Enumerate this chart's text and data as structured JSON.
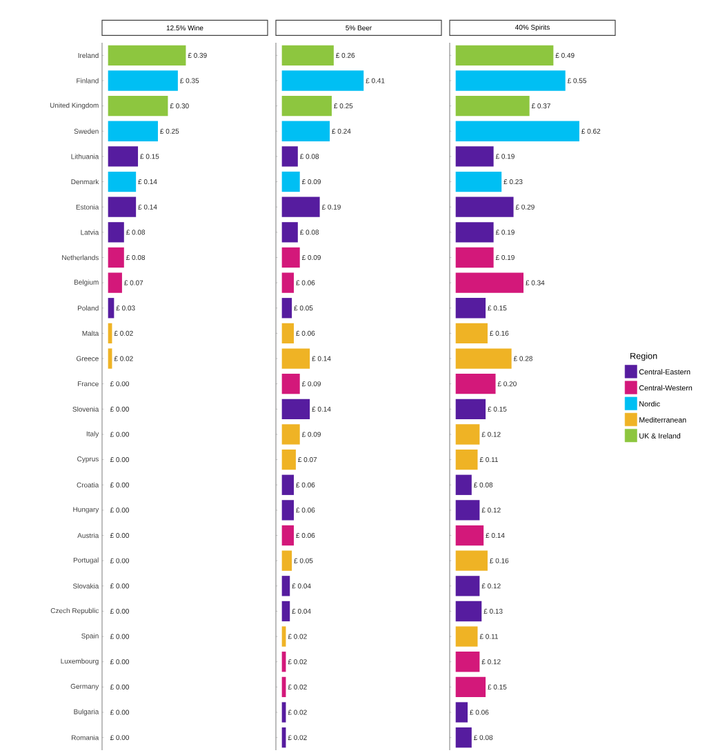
{
  "chart_data": [
    {
      "type": "bar",
      "orientation": "horizontal",
      "stacked": true,
      "title": "12.5% Wine",
      "tick_labels": "y",
      "categories": [
        "Ireland",
        "Finland",
        "United Kingdom",
        "Sweden",
        "Lithuania",
        "Denmark",
        "Estonia",
        "Latvia",
        "Netherlands",
        "Belgium",
        "Poland",
        "Malta",
        "Greece",
        "France",
        "Slovenia",
        "Italy",
        "Cyprus",
        "Croatia",
        "Hungary",
        "Austria",
        "Portugal",
        "Slovakia",
        "Czech Republic",
        "Spain",
        "Luxembourg",
        "Germany",
        "Bulgaria",
        "Romania"
      ],
      "series": [
        {
          "color": "#561c9f",
          "values": [
            null,
            null,
            null,
            null,
            0.15,
            null,
            0.14,
            0.08,
            null,
            null,
            0.03,
            null,
            null,
            null,
            0,
            null,
            null,
            0,
            0,
            null,
            null,
            0,
            0,
            null,
            null,
            null,
            0,
            0
          ],
          "value_labels": [
            null,
            null,
            null,
            null,
            "£ 0.15",
            null,
            "£ 0.14",
            "£ 0.08",
            null,
            null,
            "£ 0.03",
            null,
            null,
            null,
            "£ 0.00",
            null,
            null,
            "£ 0.00",
            "£ 0.00",
            null,
            null,
            "£ 0.00",
            "£ 0.00",
            null,
            null,
            null,
            "£ 0.00",
            "£ 0.00"
          ]
        },
        {
          "color": "#d3187a",
          "values": [
            null,
            null,
            null,
            null,
            null,
            null,
            null,
            null,
            0.08,
            0.07,
            null,
            null,
            null,
            0,
            null,
            null,
            null,
            null,
            null,
            0,
            null,
            null,
            null,
            null,
            0,
            0,
            null,
            null
          ],
          "value_labels": [
            null,
            null,
            null,
            null,
            null,
            null,
            null,
            null,
            "£ 0.08",
            "£ 0.07",
            null,
            null,
            null,
            "£ 0.00",
            null,
            null,
            null,
            null,
            null,
            "£ 0.00",
            null,
            null,
            null,
            null,
            "£ 0.00",
            "£ 0.00",
            null,
            null
          ]
        },
        {
          "color": "#00bff3",
          "values": [
            null,
            0.35,
            null,
            0.25,
            null,
            0.14,
            null,
            null,
            null,
            null,
            null,
            null,
            null,
            null,
            null,
            null,
            null,
            null,
            null,
            null,
            null,
            null,
            null,
            null,
            null,
            null,
            null,
            null
          ],
          "value_labels": [
            null,
            "£ 0.35",
            null,
            "£ 0.25",
            null,
            "£ 0.14",
            null,
            null,
            null,
            null,
            null,
            null,
            null,
            null,
            null,
            null,
            null,
            null,
            null,
            null,
            null,
            null,
            null,
            null,
            null,
            null,
            null,
            null
          ]
        },
        {
          "color": "#efb325",
          "values": [
            null,
            null,
            null,
            null,
            null,
            null,
            null,
            null,
            null,
            null,
            null,
            0.02,
            0.02,
            null,
            null,
            0,
            0,
            null,
            null,
            null,
            0,
            null,
            null,
            0,
            null,
            null,
            null,
            null
          ],
          "value_labels": [
            null,
            null,
            null,
            null,
            null,
            null,
            null,
            null,
            null,
            null,
            null,
            "£ 0.02",
            "£ 0.02",
            null,
            null,
            "£ 0.00",
            "£ 0.00",
            null,
            null,
            null,
            "£ 0.00",
            null,
            null,
            "£ 0.00",
            null,
            null,
            null,
            null
          ]
        },
        {
          "color": "#8dc63f",
          "values": [
            0.39,
            null,
            0.3,
            null,
            null,
            null,
            null,
            null,
            null,
            null,
            null,
            null,
            null,
            null,
            null,
            null,
            null,
            null,
            null,
            null,
            null,
            null,
            null,
            null,
            null,
            null,
            null,
            null
          ],
          "value_labels": [
            "£ 0.39",
            null,
            "£ 0.30",
            null,
            null,
            null,
            null,
            null,
            null,
            null,
            null,
            null,
            null,
            null,
            null,
            null,
            null,
            null,
            null,
            null,
            null,
            null,
            null,
            null,
            null,
            null,
            null,
            null
          ]
        }
      ]
    },
    {
      "type": "bar",
      "orientation": "horizontal",
      "stacked": true,
      "title": "5% Beer",
      "tick_labels": false,
      "categories": [
        null,
        null,
        null,
        null,
        null,
        null,
        null,
        null,
        null,
        null,
        null,
        null,
        null,
        null,
        null,
        null,
        null,
        null,
        null,
        null,
        null,
        null,
        null,
        null,
        null,
        null,
        null,
        null
      ],
      "series": [
        {
          "color": "#561c9f",
          "values": [
            null,
            null,
            null,
            null,
            0.08,
            null,
            0.19,
            0.08,
            null,
            null,
            0.05,
            null,
            null,
            null,
            0.14,
            null,
            null,
            0.06,
            0.06,
            null,
            null,
            0.04,
            0.04,
            null,
            null,
            null,
            0.02,
            0.02
          ],
          "value_labels": [
            null,
            null,
            null,
            null,
            "£ 0.08",
            null,
            "£ 0.19",
            "£ 0.08",
            null,
            null,
            "£ 0.05",
            null,
            null,
            null,
            "£ 0.14",
            null,
            null,
            "£ 0.06",
            "£ 0.06",
            null,
            null,
            "£ 0.04",
            "£ 0.04",
            null,
            null,
            null,
            "£ 0.02",
            "£ 0.02"
          ]
        },
        {
          "color": "#d3187a",
          "values": [
            null,
            null,
            null,
            null,
            null,
            null,
            null,
            null,
            0.09,
            0.06,
            null,
            null,
            null,
            0.09,
            null,
            null,
            null,
            null,
            null,
            0.06,
            null,
            null,
            null,
            null,
            0.02,
            0.02,
            null,
            null
          ],
          "value_labels": [
            null,
            null,
            null,
            null,
            null,
            null,
            null,
            null,
            "£ 0.09",
            "£ 0.06",
            null,
            null,
            null,
            "£ 0.09",
            null,
            null,
            null,
            null,
            null,
            "£ 0.06",
            null,
            null,
            null,
            null,
            "£ 0.02",
            "£ 0.02",
            null,
            null
          ]
        },
        {
          "color": "#00bff3",
          "values": [
            null,
            0.41,
            null,
            0.24,
            null,
            0.09,
            null,
            null,
            null,
            null,
            null,
            null,
            null,
            null,
            null,
            null,
            null,
            null,
            null,
            null,
            null,
            null,
            null,
            null,
            null,
            null,
            null,
            null
          ],
          "value_labels": [
            null,
            "£ 0.41",
            null,
            "£ 0.24",
            null,
            "£ 0.09",
            null,
            null,
            null,
            null,
            null,
            null,
            null,
            null,
            null,
            null,
            null,
            null,
            null,
            null,
            null,
            null,
            null,
            null,
            null,
            null,
            null,
            null
          ]
        },
        {
          "color": "#efb325",
          "values": [
            null,
            null,
            null,
            null,
            null,
            null,
            null,
            null,
            null,
            null,
            null,
            0.06,
            0.14,
            null,
            null,
            0.09,
            0.07,
            null,
            null,
            null,
            0.05,
            null,
            null,
            0.02,
            null,
            null,
            null,
            null
          ],
          "value_labels": [
            null,
            null,
            null,
            null,
            null,
            null,
            null,
            null,
            null,
            null,
            null,
            "£ 0.06",
            "£ 0.14",
            null,
            null,
            "£ 0.09",
            "£ 0.07",
            null,
            null,
            null,
            "£ 0.05",
            null,
            null,
            "£ 0.02",
            null,
            null,
            null,
            null
          ]
        },
        {
          "color": "#8dc63f",
          "values": [
            0.26,
            null,
            0.25,
            null,
            null,
            null,
            null,
            null,
            null,
            null,
            null,
            null,
            null,
            null,
            null,
            null,
            null,
            null,
            null,
            null,
            null,
            null,
            null,
            null,
            null,
            null,
            null,
            null
          ],
          "value_labels": [
            "£ 0.26",
            null,
            "£ 0.25",
            null,
            null,
            null,
            null,
            null,
            null,
            null,
            null,
            null,
            null,
            null,
            null,
            null,
            null,
            null,
            null,
            null,
            null,
            null,
            null,
            null,
            null,
            null,
            null,
            null
          ]
        }
      ]
    },
    {
      "type": "bar",
      "orientation": "horizontal",
      "stacked": true,
      "title": "40% Spirits",
      "tick_labels": false,
      "legend": "right",
      "legend_title": "Region",
      "categories": [
        null,
        null,
        null,
        null,
        null,
        null,
        null,
        null,
        null,
        null,
        null,
        null,
        null,
        null,
        null,
        null,
        null,
        null,
        null,
        null,
        null,
        null,
        null,
        null,
        null,
        null,
        null,
        null
      ],
      "series": [
        {
          "name": "Central-Eastern",
          "color": "#561c9f",
          "values": [
            null,
            null,
            null,
            null,
            0.19,
            null,
            0.29,
            0.19,
            null,
            null,
            0.15,
            null,
            null,
            null,
            0.15,
            null,
            null,
            0.08,
            0.12,
            null,
            null,
            0.12,
            0.13,
            null,
            null,
            null,
            0.06,
            0.08
          ],
          "value_labels": [
            null,
            null,
            null,
            null,
            "£ 0.19",
            null,
            "£ 0.29",
            "£ 0.19",
            null,
            null,
            "£ 0.15",
            null,
            null,
            null,
            "£ 0.15",
            null,
            null,
            "£ 0.08",
            "£ 0.12",
            null,
            null,
            "£ 0.12",
            "£ 0.13",
            null,
            null,
            null,
            "£ 0.06",
            "£ 0.08"
          ]
        },
        {
          "name": "Central-Western",
          "color": "#d3187a",
          "values": [
            null,
            null,
            null,
            null,
            null,
            null,
            null,
            null,
            0.19,
            0.34,
            null,
            null,
            null,
            0.2,
            null,
            null,
            null,
            null,
            null,
            0.14,
            null,
            null,
            null,
            null,
            0.12,
            0.15,
            null,
            null
          ],
          "value_labels": [
            null,
            null,
            null,
            null,
            null,
            null,
            null,
            null,
            "£ 0.19",
            "£ 0.34",
            null,
            null,
            null,
            "£ 0.20",
            null,
            null,
            null,
            null,
            null,
            "£ 0.14",
            null,
            null,
            null,
            null,
            "£ 0.12",
            "£ 0.15",
            null,
            null
          ]
        },
        {
          "name": "Nordic",
          "color": "#00bff3",
          "values": [
            null,
            0.55,
            null,
            0.62,
            null,
            0.23,
            null,
            null,
            null,
            null,
            null,
            null,
            null,
            null,
            null,
            null,
            null,
            null,
            null,
            null,
            null,
            null,
            null,
            null,
            null,
            null,
            null,
            null
          ],
          "value_labels": [
            null,
            "£ 0.55",
            null,
            "£ 0.62",
            null,
            "£ 0.23",
            null,
            null,
            null,
            null,
            null,
            null,
            null,
            null,
            null,
            null,
            null,
            null,
            null,
            null,
            null,
            null,
            null,
            null,
            null,
            null,
            null,
            null
          ]
        },
        {
          "name": "Mediterranean",
          "color": "#efb325",
          "values": [
            null,
            null,
            null,
            null,
            null,
            null,
            null,
            null,
            null,
            null,
            null,
            0.16,
            0.28,
            null,
            null,
            0.12,
            0.11,
            null,
            null,
            null,
            0.16,
            null,
            null,
            0.11,
            null,
            null,
            null,
            null
          ],
          "value_labels": [
            null,
            null,
            null,
            null,
            null,
            null,
            null,
            null,
            null,
            null,
            null,
            "£ 0.16",
            "£ 0.28",
            null,
            null,
            "£ 0.12",
            "£ 0.11",
            null,
            null,
            null,
            "£ 0.16",
            null,
            null,
            "£ 0.11",
            null,
            null,
            null,
            null
          ]
        },
        {
          "name": "UK & Ireland",
          "color": "#8dc63f",
          "values": [
            0.49,
            null,
            0.37,
            null,
            null,
            null,
            null,
            null,
            null,
            null,
            null,
            null,
            null,
            null,
            null,
            null,
            null,
            null,
            null,
            null,
            null,
            null,
            null,
            null,
            null,
            null,
            null,
            null
          ],
          "value_labels": [
            "£ 0.49",
            null,
            "£ 0.37",
            null,
            null,
            null,
            null,
            null,
            null,
            null,
            null,
            null,
            null,
            null,
            null,
            null,
            null,
            null,
            null,
            null,
            null,
            null,
            null,
            null,
            null,
            null,
            null,
            null
          ]
        }
      ]
    }
  ]
}
